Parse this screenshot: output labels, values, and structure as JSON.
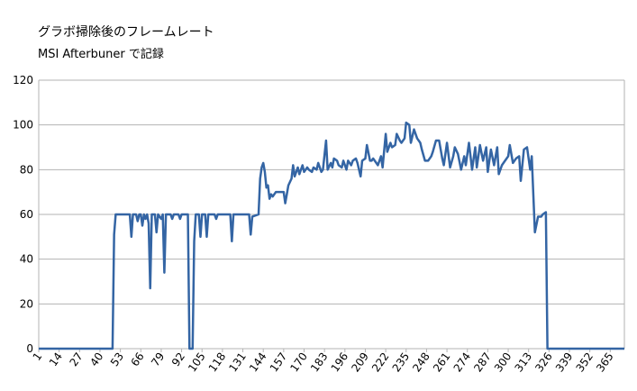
{
  "chart_data": {
    "type": "line",
    "title": "グラボ掃除後のフレームレート",
    "subtitle": "MSI Afterbuner で記録",
    "color": "#3465a4",
    "grid": true,
    "xlim": [
      1,
      374
    ],
    "ylim": [
      0,
      120
    ],
    "yticks": [
      0,
      20,
      40,
      60,
      80,
      100,
      120
    ],
    "xticks": [
      1,
      14,
      27,
      40,
      53,
      66,
      79,
      92,
      105,
      118,
      131,
      144,
      157,
      170,
      183,
      196,
      209,
      222,
      235,
      248,
      261,
      274,
      287,
      300,
      313,
      326,
      339,
      352,
      365
    ],
    "x": [
      1,
      48,
      49,
      50,
      59,
      60,
      61,
      63,
      64,
      65,
      66,
      67,
      68,
      69,
      70,
      71,
      72,
      73,
      75,
      76,
      77,
      79,
      80,
      81,
      82,
      85,
      86,
      87,
      90,
      91,
      92,
      96,
      97,
      99,
      100,
      101,
      103,
      104,
      105,
      107,
      108,
      109,
      113,
      114,
      115,
      123,
      124,
      125,
      135,
      136,
      137,
      141,
      142,
      143,
      144,
      145,
      146,
      147,
      148,
      149,
      150,
      152,
      157,
      158,
      159,
      160,
      162,
      163,
      164,
      166,
      167,
      169,
      170,
      172,
      173,
      175,
      176,
      178,
      179,
      181,
      182,
      184,
      185,
      187,
      188,
      189,
      191,
      192,
      194,
      195,
      197,
      198,
      200,
      201,
      203,
      204,
      206,
      207,
      209,
      210,
      212,
      213,
      214,
      216,
      217,
      219,
      220,
      222,
      223,
      225,
      226,
      228,
      229,
      231,
      232,
      234,
      235,
      237,
      238,
      240,
      242,
      244,
      245,
      247,
      249,
      251,
      252,
      254,
      256,
      258,
      259,
      261,
      263,
      265,
      266,
      268,
      270,
      272,
      273,
      275,
      277,
      279,
      280,
      282,
      284,
      286,
      287,
      289,
      291,
      293,
      294,
      296,
      298,
      300,
      301,
      303,
      305,
      307,
      308,
      310,
      312,
      314,
      315,
      317,
      319,
      321,
      322,
      324,
      325,
      374
    ],
    "values": [
      0,
      0,
      51,
      60,
      60,
      50,
      60,
      60,
      57,
      60,
      60,
      55,
      60,
      58,
      60,
      56,
      27,
      60,
      60,
      52,
      60,
      58,
      60,
      34,
      60,
      60,
      58,
      60,
      60,
      58,
      60,
      60,
      0,
      0,
      48,
      60,
      60,
      50,
      60,
      60,
      50,
      60,
      60,
      58,
      60,
      60,
      48,
      60,
      60,
      51,
      59,
      60,
      76,
      81,
      83,
      79,
      72,
      73,
      67,
      69,
      68,
      70,
      70,
      65,
      69,
      73,
      76,
      82,
      77,
      81,
      78,
      82,
      79,
      81,
      80,
      79,
      81,
      80,
      83,
      79,
      80,
      93,
      80,
      83,
      81,
      85,
      84,
      82,
      81,
      84,
      80,
      84,
      82,
      84,
      85,
      83,
      77,
      84,
      85,
      91,
      84,
      84,
      85,
      83,
      82,
      86,
      81,
      96,
      88,
      92,
      90,
      91,
      96,
      93,
      92,
      94,
      101,
      100,
      92,
      98,
      94,
      92,
      89,
      84,
      84,
      86,
      88,
      93,
      93,
      85,
      82,
      92,
      81,
      86,
      90,
      87,
      80,
      86,
      82,
      92,
      80,
      90,
      81,
      91,
      84,
      90,
      79,
      89,
      82,
      90,
      78,
      82,
      84,
      86,
      91,
      83,
      85,
      86,
      75,
      89,
      90,
      80,
      86,
      52,
      59,
      59,
      60,
      61,
      0,
      0
    ]
  }
}
